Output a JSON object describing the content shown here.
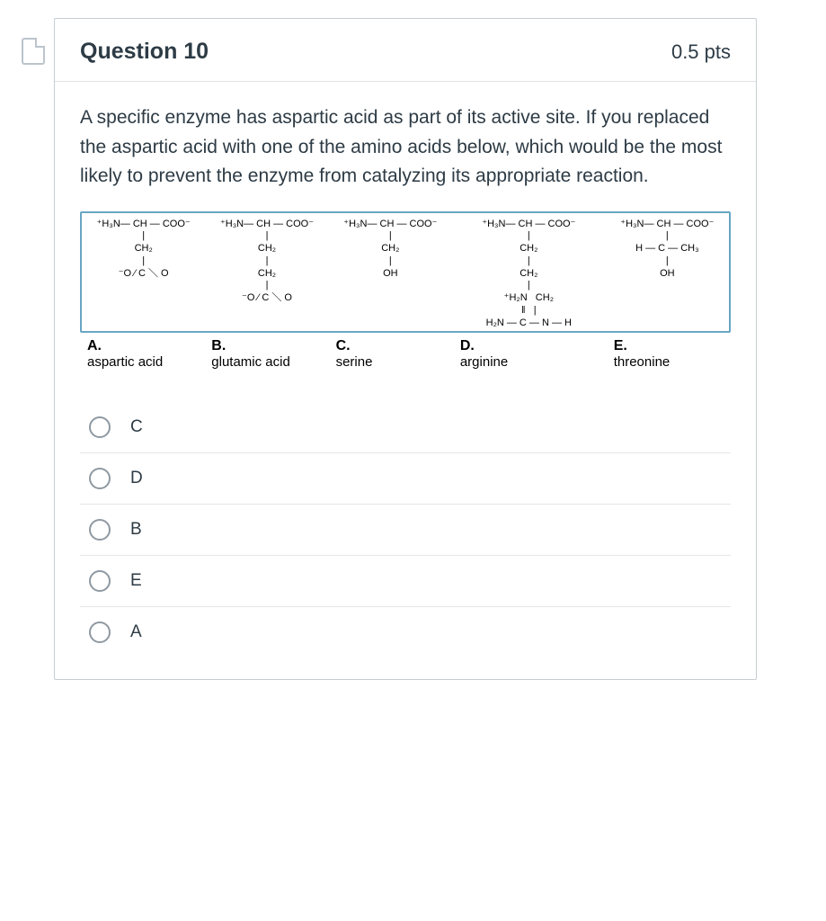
{
  "header": {
    "title": "Question 10",
    "pts": "0.5 pts"
  },
  "stem": "A specific enzyme has aspartic acid as part of its active site. If you replaced the aspartic acid with one of the amino acids below, which would be the most likely to prevent the enzyme from catalyzing its appropriate reaction.",
  "structures": {
    "A": "⁺H₃N— CH — COO⁻\n|\nCH₂\n|\n⁻O ⁄ C ＼ O",
    "B": "⁺H₃N— CH — COO⁻\n|\nCH₂\n|\nCH₂\n|\n⁻O ⁄ C ＼ O",
    "C": "⁺H₃N— CH — COO⁻\n|\nCH₂\n|\nOH",
    "D": "⁺H₃N— CH — COO⁻\n|\nCH₂\n|\nCH₂\n|\n⁺H₂N   CH₂\n‖   |\nH₂N — C — N — H",
    "E": "⁺H₃N— CH — COO⁻\n|\nH — C — CH₃\n|\nOH"
  },
  "labels": {
    "A": {
      "letter": "A.",
      "name": "aspartic acid"
    },
    "B": {
      "letter": "B.",
      "name": "glutamic acid"
    },
    "C": {
      "letter": "C.",
      "name": "serine"
    },
    "D": {
      "letter": "D.",
      "name": "arginine"
    },
    "E": {
      "letter": "E.",
      "name": "threonine"
    }
  },
  "options": [
    {
      "key": "C",
      "label": "C"
    },
    {
      "key": "D",
      "label": "D"
    },
    {
      "key": "B",
      "label": "B"
    },
    {
      "key": "E",
      "label": "E"
    },
    {
      "key": "A",
      "label": "A"
    }
  ],
  "colors": {
    "box_border": "#68a6c4",
    "card_border": "#c7cdd1",
    "text": "#2d3b45",
    "radio_border": "#8f99a2",
    "divider": "#e4e7e9"
  }
}
